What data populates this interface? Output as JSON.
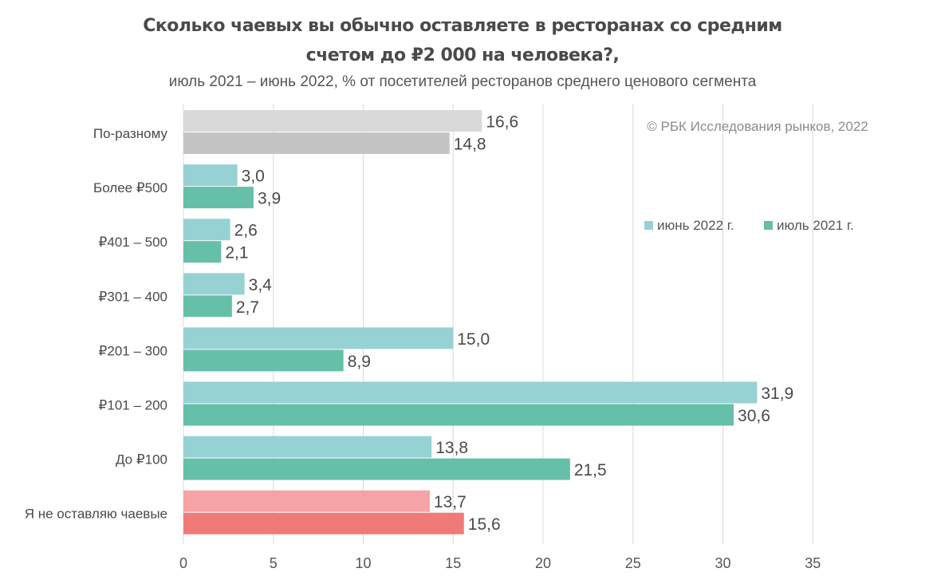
{
  "title_line1": "Сколько чаевых вы обычно оставляете в ресторанах со средним",
  "title_line2": "счетом до ₽2 000 на человека?,",
  "subtitle": "июль 2021 – июнь 2022, % от посетителей ресторанов среднего ценового сегмента",
  "copyright": "© РБК Исследования рынков, 2022",
  "chart_data": {
    "type": "bar",
    "orientation": "horizontal",
    "categories": [
      "По-разному",
      "Более ₽500",
      "₽401 – 500",
      "₽301 – 400",
      "₽201 – 300",
      "₽101 – 200",
      "До ₽100",
      "Я не оставляю чаевые"
    ],
    "series": [
      {
        "name": "июнь 2022 г.",
        "values": [
          16.6,
          3.0,
          2.6,
          3.4,
          15.0,
          31.9,
          13.8,
          13.7
        ],
        "labels": [
          "16,6",
          "3,0",
          "2,6",
          "3,4",
          "15,0",
          "31,9",
          "13,8",
          "13,7"
        ],
        "color": "#96d2d3"
      },
      {
        "name": "июль 2021 г.",
        "values": [
          14.8,
          3.9,
          2.1,
          2.7,
          8.9,
          30.6,
          21.5,
          15.6
        ],
        "labels": [
          "14,8",
          "3,9",
          "2,1",
          "2,7",
          "8,9",
          "30,6",
          "21,5",
          "15,6"
        ],
        "color": "#66bfa9"
      }
    ],
    "category_colors": {
      "По-разному": [
        "#d9d9d9",
        "#c4c4c4"
      ],
      "Я не оставляю чаевые": [
        "#f6a3a6",
        "#f07a78"
      ]
    },
    "xlim": [
      0,
      35
    ],
    "xticks": [
      0,
      5,
      10,
      15,
      20,
      25,
      30,
      35
    ],
    "xtick_labels": [
      "0",
      "5",
      "10",
      "15",
      "20",
      "25",
      "30",
      "35"
    ],
    "grid": true,
    "legend_position": "right"
  }
}
